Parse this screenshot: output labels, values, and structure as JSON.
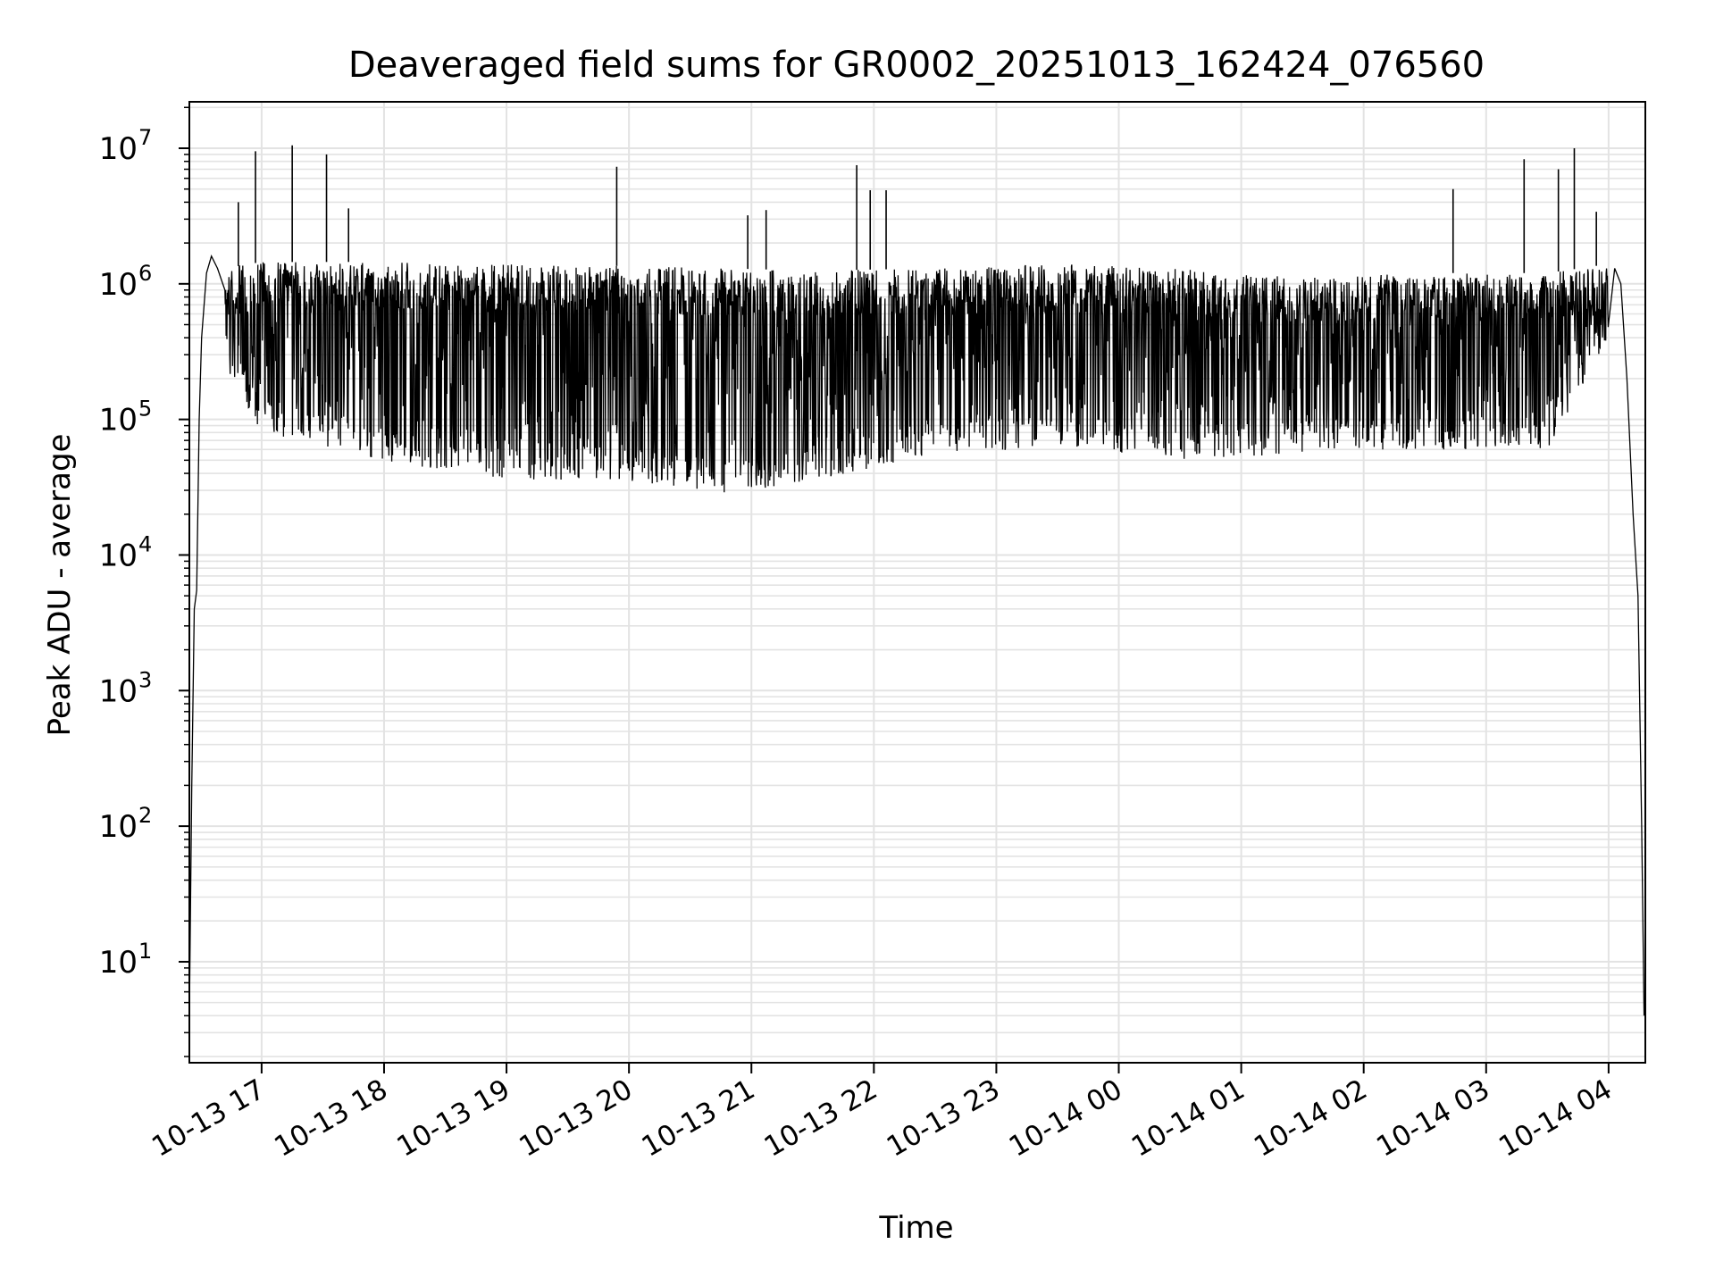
{
  "chart_data": {
    "type": "line",
    "title": "Deaveraged field sums for GR0002_20251013_162424_076560",
    "xlabel": "Time",
    "ylabel": "Peak ADU - average",
    "yscale": "log",
    "ylim": [
      1.8,
      22000000
    ],
    "xlim_hours": [
      16.41,
      28.3
    ],
    "grid": true,
    "legend": "none",
    "x_ticks": [
      {
        "hours": 17,
        "label": "10-13 17"
      },
      {
        "hours": 18,
        "label": "10-13 18"
      },
      {
        "hours": 19,
        "label": "10-13 19"
      },
      {
        "hours": 20,
        "label": "10-13 20"
      },
      {
        "hours": 21,
        "label": "10-13 21"
      },
      {
        "hours": 22,
        "label": "10-13 22"
      },
      {
        "hours": 23,
        "label": "10-13 23"
      },
      {
        "hours": 24,
        "label": "10-14 00"
      },
      {
        "hours": 25,
        "label": "10-14 01"
      },
      {
        "hours": 26,
        "label": "10-14 02"
      },
      {
        "hours": 27,
        "label": "10-14 03"
      },
      {
        "hours": 28,
        "label": "10-14 04"
      }
    ],
    "y_ticks": [
      {
        "exp": 1,
        "base": "10",
        "sup": "1"
      },
      {
        "exp": 2,
        "base": "10",
        "sup": "2"
      },
      {
        "exp": 3,
        "base": "10",
        "sup": "3"
      },
      {
        "exp": 4,
        "base": "10",
        "sup": "4"
      },
      {
        "exp": 5,
        "base": "10",
        "sup": "5"
      },
      {
        "exp": 6,
        "base": "10",
        "sup": "6"
      },
      {
        "exp": 7,
        "base": "10",
        "sup": "7"
      }
    ],
    "ramp_up": [
      [
        16.41,
        4
      ],
      [
        16.43,
        200
      ],
      [
        16.45,
        4000
      ],
      [
        16.47,
        5500
      ],
      [
        16.49,
        100000
      ],
      [
        16.51,
        400000
      ],
      [
        16.55,
        1200000
      ],
      [
        16.59,
        1600000
      ],
      [
        16.64,
        1300000
      ],
      [
        16.7,
        900000
      ]
    ],
    "ramp_down": [
      [
        28.05,
        1300000
      ],
      [
        28.1,
        1000000
      ],
      [
        28.15,
        200000
      ],
      [
        28.2,
        20000
      ],
      [
        28.24,
        5000
      ],
      [
        28.27,
        100
      ],
      [
        28.29,
        4
      ]
    ],
    "spikes": [
      {
        "hours": 16.95,
        "value": 9500000
      },
      {
        "hours": 17.25,
        "value": 10500000
      },
      {
        "hours": 17.53,
        "value": 9000000
      },
      {
        "hours": 16.81,
        "value": 4000000
      },
      {
        "hours": 17.71,
        "value": 3600000
      },
      {
        "hours": 19.9,
        "value": 7300000
      },
      {
        "hours": 20.97,
        "value": 3200000
      },
      {
        "hours": 21.12,
        "value": 3500000
      },
      {
        "hours": 21.86,
        "value": 7500000
      },
      {
        "hours": 21.97,
        "value": 4900000
      },
      {
        "hours": 22.1,
        "value": 4900000
      },
      {
        "hours": 26.73,
        "value": 5000000
      },
      {
        "hours": 27.31,
        "value": 8300000
      },
      {
        "hours": 27.59,
        "value": 7000000
      },
      {
        "hours": 27.72,
        "value": 10000000
      },
      {
        "hours": 27.9,
        "value": 3400000
      }
    ],
    "envelope": [
      {
        "hours": 16.7,
        "upper": 1300000,
        "lower": 250000
      },
      {
        "hours": 17.0,
        "upper": 1450000,
        "lower": 80000
      },
      {
        "hours": 18.0,
        "upper": 1450000,
        "lower": 50000
      },
      {
        "hours": 19.0,
        "upper": 1400000,
        "lower": 35000
      },
      {
        "hours": 20.0,
        "upper": 1350000,
        "lower": 35000
      },
      {
        "hours": 20.8,
        "upper": 1300000,
        "lower": 28000
      },
      {
        "hours": 21.5,
        "upper": 1250000,
        "lower": 35000
      },
      {
        "hours": 22.5,
        "upper": 1300000,
        "lower": 55000
      },
      {
        "hours": 23.5,
        "upper": 1400000,
        "lower": 60000
      },
      {
        "hours": 24.5,
        "upper": 1300000,
        "lower": 50000
      },
      {
        "hours": 25.5,
        "upper": 1100000,
        "lower": 55000
      },
      {
        "hours": 26.5,
        "upper": 1200000,
        "lower": 60000
      },
      {
        "hours": 27.5,
        "upper": 1200000,
        "lower": 60000
      },
      {
        "hours": 28.0,
        "upper": 1400000,
        "lower": 400000
      }
    ],
    "line_color": "#000000",
    "grid_color": "#e3e3e3"
  }
}
